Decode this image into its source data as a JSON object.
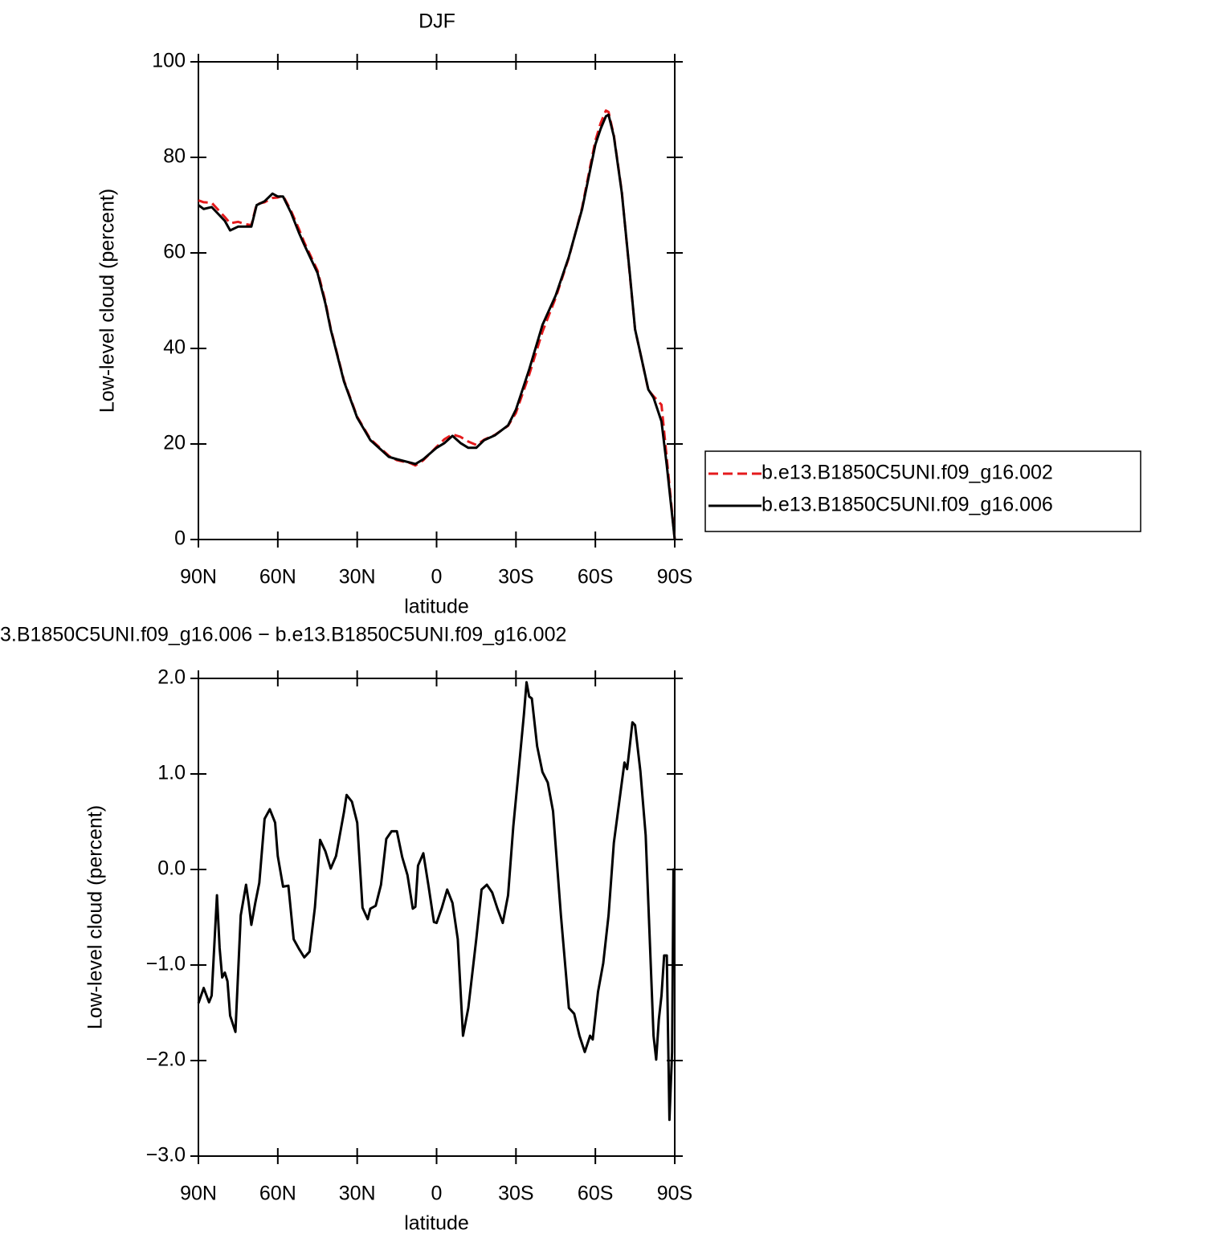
{
  "chart_data": [
    {
      "type": "line",
      "title": "DJF",
      "ylabel": "Low-level cloud (percent)",
      "xlabel": "latitude",
      "xlim": [
        90,
        -90
      ],
      "xticks": [
        {
          "value": 90,
          "label": "90N"
        },
        {
          "value": 60,
          "label": "60N"
        },
        {
          "value": 30,
          "label": "30N"
        },
        0,
        {
          "value": -30,
          "label": "30S"
        },
        {
          "value": -60,
          "label": "60S"
        },
        {
          "value": -90,
          "label": "90S"
        }
      ],
      "ylim": [
        0,
        100
      ],
      "yticks": [
        0,
        20,
        40,
        60,
        80,
        100
      ],
      "x": [
        90,
        88,
        85,
        80,
        78,
        75,
        72,
        70,
        68,
        65,
        62,
        60,
        58,
        55,
        52,
        50,
        45,
        42,
        40,
        35,
        30,
        25,
        20,
        18,
        15,
        10,
        8,
        5,
        0,
        -3,
        -6,
        -9,
        -12,
        -15,
        -18,
        -22,
        -27,
        -30,
        -35,
        -40,
        -45,
        -50,
        -55,
        -58,
        -60,
        -62,
        -64,
        -65,
        -67,
        -70,
        -73,
        -75,
        -77,
        -80,
        -82,
        -85,
        -87,
        -90
      ],
      "series": [
        {
          "name": "b.e13.B1850C5UNI.f09_g16.002",
          "color": "#e41a1c",
          "dash": true,
          "values": [
            71,
            70.6,
            70.5,
            67.5,
            66.2,
            66.5,
            66,
            65.8,
            70.2,
            70.6,
            71.5,
            71.6,
            72,
            68.8,
            65,
            62.2,
            56.3,
            49.8,
            44.2,
            33.3,
            25.7,
            21,
            18.5,
            17.5,
            16.6,
            16,
            15.5,
            16.6,
            19.4,
            21,
            22,
            21.5,
            20.5,
            19.8,
            20.9,
            21.9,
            23.8,
            26.5,
            34.5,
            43.5,
            50.6,
            59,
            69.5,
            78,
            83.5,
            87.2,
            89.8,
            89.5,
            84.6,
            72.8,
            55.5,
            44,
            39,
            31.3,
            30,
            28.2,
            17,
            0
          ]
        },
        {
          "name": "b.e13.B1850C5UNI.f09_g16.006",
          "color": "#000000",
          "dash": false,
          "values": [
            70,
            69.2,
            69.6,
            66.7,
            64.7,
            65.5,
            65.5,
            65.5,
            70,
            70.8,
            72.4,
            71.8,
            71.8,
            68.4,
            64.2,
            61.7,
            55.8,
            49.4,
            44,
            33.1,
            25.5,
            20.8,
            18.3,
            17.3,
            16.8,
            16.1,
            15.8,
            16.8,
            19.2,
            20.2,
            21.7,
            20.2,
            19.2,
            19.2,
            20.8,
            21.8,
            23.9,
            27.2,
            35.6,
            44.9,
            51.1,
            59.2,
            69.2,
            77.3,
            82.7,
            86,
            88.6,
            88.9,
            84.4,
            72.6,
            55.8,
            44,
            39,
            31.4,
            29.7,
            24.7,
            15.5,
            0
          ]
        }
      ]
    },
    {
      "type": "line",
      "title": "3.B1850C5UNI.f09_g16.006 − b.e13.B1850C5UNI.f09_g16.002",
      "ylabel": "Low-level cloud (percent)",
      "xlabel": "latitude",
      "xlim": [
        90,
        -90
      ],
      "xticks": [
        {
          "value": 90,
          "label": "90N"
        },
        {
          "value": 60,
          "label": "60N"
        },
        {
          "value": 30,
          "label": "30N"
        },
        0,
        {
          "value": -30,
          "label": "30S"
        },
        {
          "value": -60,
          "label": "60S"
        },
        {
          "value": -90,
          "label": "90S"
        }
      ],
      "ylim": [
        -3,
        2
      ],
      "yticks": [
        {
          "value": -3,
          "label": "−3.0"
        },
        {
          "value": -2,
          "label": "−2.0"
        },
        {
          "value": -1,
          "label": "−1.0"
        },
        {
          "value": 0,
          "label": "0.0"
        },
        {
          "value": 1,
          "label": "1.0"
        },
        {
          "value": 2,
          "label": "2.0"
        }
      ],
      "color": "#000000",
      "x": [
        90,
        88,
        86,
        85,
        83,
        82,
        81,
        80,
        79,
        78,
        76,
        74,
        72,
        71,
        70,
        68.5,
        67,
        65,
        63,
        61,
        60,
        58,
        56,
        54,
        52,
        50,
        48,
        46,
        44,
        42,
        40,
        38,
        35,
        34,
        32,
        30,
        28,
        26,
        25,
        23,
        21,
        19,
        17,
        15,
        13,
        11,
        9,
        8,
        7,
        5,
        3,
        1,
        0,
        -2,
        -4,
        -6,
        -8,
        -10,
        -12,
        -15,
        -17,
        -19,
        -21,
        -23,
        -25,
        -27,
        -29,
        -31,
        -33,
        -34,
        -35,
        -36,
        -38,
        -40,
        -42,
        -44,
        -47,
        -50,
        -52,
        -54,
        -56,
        -58,
        -59,
        -61,
        -63,
        -65,
        -67,
        -69,
        -71,
        -72,
        -73,
        -74,
        -75,
        -77,
        -79,
        -82,
        -83,
        -84,
        -85,
        -86,
        -87,
        -88,
        -89,
        -89.5,
        -90
      ],
      "values": [
        -1.4,
        -1.24,
        -1.39,
        -1.32,
        -0.27,
        -0.82,
        -1.13,
        -1.08,
        -1.17,
        -1.53,
        -1.7,
        -0.48,
        -0.16,
        -0.35,
        -0.58,
        -0.35,
        -0.14,
        0.53,
        0.63,
        0.49,
        0.14,
        -0.18,
        -0.17,
        -0.73,
        -0.83,
        -0.92,
        -0.86,
        -0.4,
        0.31,
        0.19,
        0.01,
        0.14,
        0.6,
        0.78,
        0.71,
        0.49,
        -0.4,
        -0.52,
        -0.41,
        -0.38,
        -0.16,
        0.32,
        0.4,
        0.4,
        0.13,
        -0.06,
        -0.41,
        -0.39,
        0.04,
        0.17,
        -0.18,
        -0.55,
        -0.56,
        -0.4,
        -0.21,
        -0.35,
        -0.73,
        -1.74,
        -1.45,
        -0.73,
        -0.21,
        -0.16,
        -0.24,
        -0.41,
        -0.56,
        -0.27,
        0.45,
        1.03,
        1.62,
        1.96,
        1.81,
        1.79,
        1.29,
        1.02,
        0.91,
        0.61,
        -0.48,
        -1.45,
        -1.51,
        -1.74,
        -1.91,
        -1.74,
        -1.78,
        -1.28,
        -0.98,
        -0.48,
        0.28,
        0.7,
        1.12,
        1.05,
        1.29,
        1.54,
        1.51,
        1.03,
        0.36,
        -1.74,
        -1.99,
        -1.57,
        -1.32,
        -0.9,
        -0.9,
        -2.62,
        -1.91,
        0,
        0
      ]
    }
  ]
}
